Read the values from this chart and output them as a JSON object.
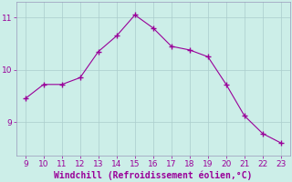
{
  "x": [
    9,
    10,
    11,
    12,
    13,
    14,
    15,
    16,
    17,
    18,
    19,
    20,
    21,
    22,
    23
  ],
  "y": [
    9.45,
    9.72,
    9.72,
    9.85,
    10.35,
    10.65,
    11.05,
    10.8,
    10.45,
    10.38,
    10.25,
    9.72,
    9.12,
    8.78,
    8.6
  ],
  "line_color": "#990099",
  "marker": "+",
  "marker_size": 4,
  "marker_lw": 1.0,
  "bg_color": "#cceee8",
  "grid_color": "#aacccc",
  "xlabel": "Windchill (Refroidissement éolien,°C)",
  "xlabel_color": "#990099",
  "tick_color": "#990099",
  "spine_color": "#9999bb",
  "xlim": [
    8.5,
    23.5
  ],
  "ylim": [
    8.35,
    11.3
  ],
  "yticks": [
    9,
    10,
    11
  ],
  "xticks": [
    9,
    10,
    11,
    12,
    13,
    14,
    15,
    16,
    17,
    18,
    19,
    20,
    21,
    22,
    23
  ],
  "tick_fontsize": 6.5,
  "xlabel_fontsize": 7.0,
  "line_width": 0.8
}
